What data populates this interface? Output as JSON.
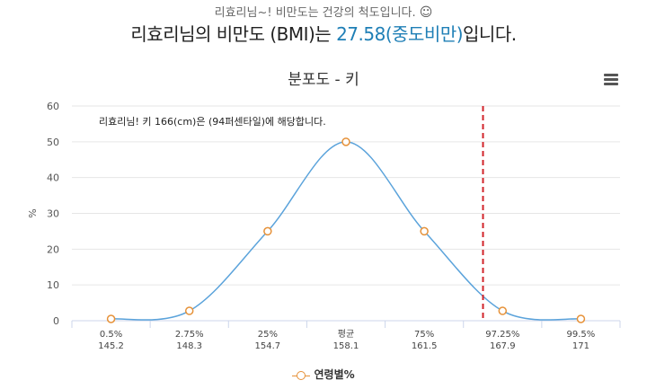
{
  "header": {
    "subtitle": "리효리님~! 비만도는 건강의 척도입니다.",
    "subtitle_icon": "smiley-icon",
    "headline_prefix": "리효리님의 비만도 (BMI)는 ",
    "bmi_value": "27.58(중도비만)",
    "headline_suffix": "입니다."
  },
  "menu_icon": "hamburger-menu-icon",
  "colors": {
    "accent": "#1f7fb6",
    "line": "#5ba3db",
    "marker": "#e69138",
    "marker_line": "#d2232a"
  },
  "chart_data": {
    "type": "line",
    "title": "분포도 - 키",
    "annotation": "리효리님! 키 166(cm)은 (94퍼센타일)에 해당합니다.",
    "xlabel": "",
    "ylabel": "%",
    "ylim": [
      0,
      60
    ],
    "yticks": [
      0,
      10,
      20,
      30,
      40,
      50,
      60
    ],
    "categories": [
      "0.5%",
      "2.75%",
      "25%",
      "평균",
      "75%",
      "97.25%",
      "99.5%"
    ],
    "category_values": [
      "145.2",
      "148.3",
      "154.7",
      "158.1",
      "161.5",
      "167.9",
      "171"
    ],
    "series": [
      {
        "name": "연령별%",
        "values": [
          0.5,
          2.75,
          25,
          50,
          25,
          2.75,
          0.5
        ]
      }
    ],
    "marker_category_position": 4.75,
    "grid": true,
    "legend_position": "bottom"
  }
}
